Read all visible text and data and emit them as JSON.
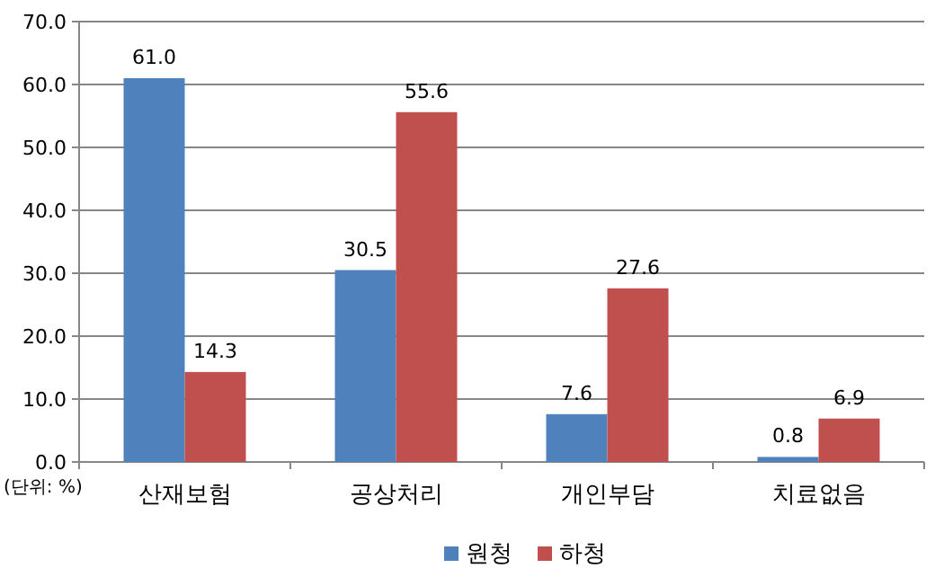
{
  "chart_data": {
    "type": "bar",
    "categories": [
      "산재보험",
      "공상처리",
      "개인부담",
      "치료없음"
    ],
    "series": [
      {
        "name": "원청",
        "color": "#4f81bd",
        "values": [
          61.0,
          30.5,
          7.6,
          0.8
        ],
        "value_labels": [
          "61.0",
          "30.5",
          "7.6",
          "0.8"
        ]
      },
      {
        "name": "하청",
        "color": "#c0504d",
        "values": [
          14.3,
          55.6,
          27.6,
          6.9
        ],
        "value_labels": [
          "14.3",
          "55.6",
          "27.6",
          "6.9"
        ]
      }
    ],
    "ylim": [
      0,
      70
    ],
    "yticks": [
      {
        "value": 0,
        "label": "0.0"
      },
      {
        "value": 10,
        "label": "10.0"
      },
      {
        "value": 20,
        "label": "20.0"
      },
      {
        "value": 30,
        "label": "30.0"
      },
      {
        "value": 40,
        "label": "40.0"
      },
      {
        "value": 50,
        "label": "50.0"
      },
      {
        "value": 60,
        "label": "60.0"
      },
      {
        "value": 70,
        "label": "70.0"
      }
    ],
    "grid": "y",
    "legend": "bottom",
    "annotations": [
      "(단위: %)"
    ]
  }
}
